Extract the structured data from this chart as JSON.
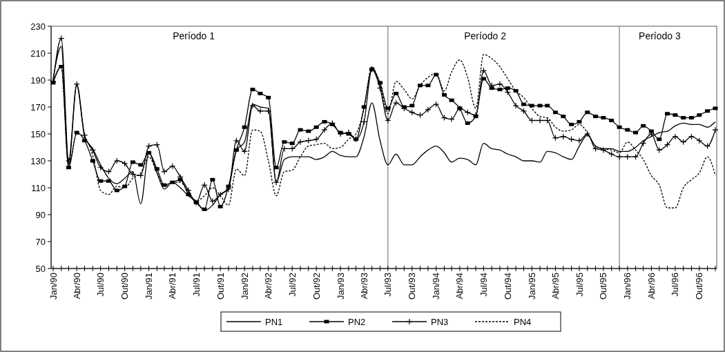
{
  "chart_data": {
    "type": "line",
    "x": [
      "1990-01",
      "1990-02",
      "1990-03",
      "1990-04",
      "1990-05",
      "1990-06",
      "1990-07",
      "1990-08",
      "1990-09",
      "1990-10",
      "1990-11",
      "1990-12",
      "1991-01",
      "1991-02",
      "1991-03",
      "1991-04",
      "1991-05",
      "1991-06",
      "1991-07",
      "1991-08",
      "1991-09",
      "1991-10",
      "1991-11",
      "1991-12",
      "1992-01",
      "1992-02",
      "1992-03",
      "1992-04",
      "1992-05",
      "1992-06",
      "1992-07",
      "1992-08",
      "1992-09",
      "1992-10",
      "1992-11",
      "1992-12",
      "1993-01",
      "1993-02",
      "1993-03",
      "1993-04",
      "1993-05",
      "1993-06",
      "1993-07",
      "1993-08",
      "1993-09",
      "1993-10",
      "1993-11",
      "1993-12",
      "1994-01",
      "1994-02",
      "1994-03",
      "1994-04",
      "1994-05",
      "1994-06",
      "1994-07",
      "1994-08",
      "1994-09",
      "1994-10",
      "1994-11",
      "1994-12",
      "1995-01",
      "1995-02",
      "1995-03",
      "1995-04",
      "1995-05",
      "1995-06",
      "1995-07",
      "1995-08",
      "1995-09",
      "1995-10",
      "1995-11",
      "1995-12",
      "1996-01",
      "1996-02",
      "1996-03",
      "1996-04",
      "1996-05",
      "1996-06",
      "1996-07",
      "1996-08",
      "1996-09",
      "1996-10",
      "1996-11",
      "1996-12"
    ],
    "series": [
      {
        "name": "PN1",
        "color": "#000000",
        "marker": "none",
        "line_style": "solid",
        "values": [
          191,
          215,
          127,
          186,
          148,
          139,
          127,
          117,
          113,
          117,
          122,
          98,
          136,
          121,
          109,
          114,
          110,
          104,
          100,
          93,
          97,
          105,
          110,
          138,
          144,
          172,
          170,
          169,
          114,
          131,
          133,
          133,
          133,
          131,
          133,
          137,
          134,
          133,
          133,
          148,
          173,
          145,
          127,
          135,
          127,
          127,
          133,
          138,
          141,
          136,
          129,
          132,
          131,
          127,
          143,
          139,
          138,
          135,
          133,
          130,
          130,
          129,
          137,
          136,
          133,
          131,
          141,
          149,
          141,
          139,
          139,
          137,
          137,
          140,
          145,
          148,
          151,
          152,
          156,
          158,
          157,
          157,
          155,
          159
        ]
      },
      {
        "name": "PN2",
        "color": "#000000",
        "marker": "square",
        "line_style": "solid",
        "values": [
          188,
          200,
          125,
          151,
          145,
          130,
          115,
          115,
          108,
          111,
          129,
          127,
          136,
          124,
          112,
          114,
          116,
          105,
          99,
          94,
          116,
          96,
          111,
          138,
          155,
          183,
          180,
          177,
          125,
          144,
          143,
          153,
          152,
          155,
          159,
          157,
          151,
          150,
          146,
          170,
          198,
          188,
          169,
          180,
          170,
          171,
          186,
          186,
          194,
          179,
          175,
          169,
          158,
          163,
          191,
          184,
          183,
          184,
          182,
          172,
          171,
          171,
          171,
          166,
          163,
          157,
          159,
          166,
          163,
          162,
          160,
          155,
          153,
          151,
          156,
          152,
          146,
          165,
          164,
          162,
          162,
          164,
          167,
          169
        ]
      },
      {
        "name": "PN3",
        "color": "#000000",
        "marker": "cross",
        "line_style": "solid",
        "values": [
          189,
          221,
          130,
          187,
          149,
          138,
          125,
          122,
          130,
          128,
          120,
          119,
          141,
          142,
          122,
          126,
          118,
          108,
          99,
          112,
          100,
          105,
          109,
          145,
          137,
          171,
          167,
          167,
          114,
          139,
          139,
          144,
          145,
          146,
          153,
          158,
          150,
          151,
          146,
          159,
          198,
          184,
          160,
          173,
          169,
          166,
          164,
          168,
          172,
          162,
          161,
          169,
          166,
          164,
          197,
          186,
          187,
          181,
          171,
          167,
          160,
          160,
          160,
          147,
          148,
          146,
          145,
          150,
          139,
          138,
          135,
          133,
          133,
          133,
          143,
          150,
          138,
          142,
          148,
          144,
          148,
          145,
          141,
          153
        ]
      },
      {
        "name": "PN4",
        "color": "#000000",
        "marker": "none",
        "line_style": "dashed",
        "values": [
          189,
          200,
          126,
          150,
          147,
          134,
          108,
          105,
          111,
          110,
          117,
          121,
          133,
          121,
          111,
          114,
          114,
          107,
          100,
          104,
          110,
          104,
          97,
          124,
          119,
          153,
          152,
          130,
          104,
          122,
          123,
          133,
          141,
          142,
          143,
          139,
          140,
          146,
          150,
          169,
          200,
          186,
          165,
          189,
          183,
          176,
          186,
          192,
          195,
          182,
          196,
          205,
          192,
          169,
          209,
          206,
          200,
          191,
          182,
          177,
          169,
          163,
          162,
          155,
          152,
          153,
          157,
          151,
          141,
          139,
          138,
          136,
          144,
          138,
          131,
          119,
          112,
          95,
          95,
          110,
          116,
          121,
          133,
          119
        ]
      }
    ],
    "xlim": [
      "1990-01",
      "1996-12"
    ],
    "xticks": [
      {
        "value": "1990-01",
        "label": "Jan/90"
      },
      {
        "value": "1990-02",
        "label": null
      },
      {
        "value": "1990-03",
        "label": null
      },
      {
        "value": "1990-04",
        "label": "Abr/90"
      },
      {
        "value": "1990-05",
        "label": null
      },
      {
        "value": "1990-06",
        "label": null
      },
      {
        "value": "1990-07",
        "label": "Jul/90"
      },
      {
        "value": "1990-08",
        "label": null
      },
      {
        "value": "1990-09",
        "label": null
      },
      {
        "value": "1990-10",
        "label": "Out/90"
      },
      {
        "value": "1990-11",
        "label": null
      },
      {
        "value": "1990-12",
        "label": null
      },
      {
        "value": "1991-01",
        "label": "Jan/91"
      },
      {
        "value": "1991-02",
        "label": null
      },
      {
        "value": "1991-03",
        "label": null
      },
      {
        "value": "1991-04",
        "label": "Abr/91"
      },
      {
        "value": "1991-05",
        "label": null
      },
      {
        "value": "1991-06",
        "label": null
      },
      {
        "value": "1991-07",
        "label": "Jul/91"
      },
      {
        "value": "1991-08",
        "label": null
      },
      {
        "value": "1991-09",
        "label": null
      },
      {
        "value": "1991-10",
        "label": "Out/91"
      },
      {
        "value": "1991-11",
        "label": null
      },
      {
        "value": "1991-12",
        "label": null
      },
      {
        "value": "1992-01",
        "label": "Jan/92"
      },
      {
        "value": "1992-02",
        "label": null
      },
      {
        "value": "1992-03",
        "label": null
      },
      {
        "value": "1992-04",
        "label": "Abr/92"
      },
      {
        "value": "1992-05",
        "label": null
      },
      {
        "value": "1992-06",
        "label": null
      },
      {
        "value": "1992-07",
        "label": "Jul/92"
      },
      {
        "value": "1992-08",
        "label": null
      },
      {
        "value": "1992-09",
        "label": null
      },
      {
        "value": "1992-10",
        "label": "Out/92"
      },
      {
        "value": "1992-11",
        "label": null
      },
      {
        "value": "1992-12",
        "label": null
      },
      {
        "value": "1993-01",
        "label": "Jan/93"
      },
      {
        "value": "1993-02",
        "label": null
      },
      {
        "value": "1993-03",
        "label": null
      },
      {
        "value": "1993-04",
        "label": "Abr/93"
      },
      {
        "value": "1993-05",
        "label": null
      },
      {
        "value": "1993-06",
        "label": null
      },
      {
        "value": "1993-07",
        "label": "Jul/93"
      },
      {
        "value": "1993-08",
        "label": null
      },
      {
        "value": "1993-09",
        "label": null
      },
      {
        "value": "1993-10",
        "label": "Out/93"
      },
      {
        "value": "1993-11",
        "label": null
      },
      {
        "value": "1993-12",
        "label": null
      },
      {
        "value": "1994-01",
        "label": "Jan/94"
      },
      {
        "value": "1994-02",
        "label": null
      },
      {
        "value": "1994-03",
        "label": null
      },
      {
        "value": "1994-04",
        "label": "Abr/94"
      },
      {
        "value": "1994-05",
        "label": null
      },
      {
        "value": "1994-06",
        "label": null
      },
      {
        "value": "1994-07",
        "label": "Jul/94"
      },
      {
        "value": "1994-08",
        "label": null
      },
      {
        "value": "1994-09",
        "label": null
      },
      {
        "value": "1994-10",
        "label": "Out/94"
      },
      {
        "value": "1994-11",
        "label": null
      },
      {
        "value": "1994-12",
        "label": null
      },
      {
        "value": "1995-01",
        "label": "Jan/95"
      },
      {
        "value": "1995-02",
        "label": null
      },
      {
        "value": "1995-03",
        "label": null
      },
      {
        "value": "1995-04",
        "label": "Abr/95"
      },
      {
        "value": "1995-05",
        "label": null
      },
      {
        "value": "1995-06",
        "label": null
      },
      {
        "value": "1995-07",
        "label": "Jul/95"
      },
      {
        "value": "1995-08",
        "label": null
      },
      {
        "value": "1995-09",
        "label": null
      },
      {
        "value": "1995-10",
        "label": "Out/95"
      },
      {
        "value": "1995-11",
        "label": null
      },
      {
        "value": "1995-12",
        "label": null
      },
      {
        "value": "1996-01",
        "label": "Jan/96"
      },
      {
        "value": "1996-02",
        "label": null
      },
      {
        "value": "1996-03",
        "label": null
      },
      {
        "value": "1996-04",
        "label": "Abr/96"
      },
      {
        "value": "1996-05",
        "label": null
      },
      {
        "value": "1996-06",
        "label": null
      },
      {
        "value": "1996-07",
        "label": "Jul/96"
      },
      {
        "value": "1996-08",
        "label": null
      },
      {
        "value": "1996-09",
        "label": null
      },
      {
        "value": "1996-10",
        "label": "Out/96"
      },
      {
        "value": "1996-11",
        "label": null
      },
      {
        "value": "1996-12",
        "label": null
      }
    ],
    "ylim": [
      50,
      230
    ],
    "yticks": [
      50,
      70,
      90,
      110,
      130,
      150,
      170,
      190,
      210,
      230
    ],
    "ref_lines": [
      {
        "axis": "x",
        "value": "1993-07",
        "color": "#808080"
      },
      {
        "axis": "x",
        "value": "1995-12",
        "color": "#808080"
      }
    ],
    "annotations": [
      "Período 1",
      "Período 2",
      "Período 3"
    ],
    "grid": false,
    "legend": "bottom"
  }
}
